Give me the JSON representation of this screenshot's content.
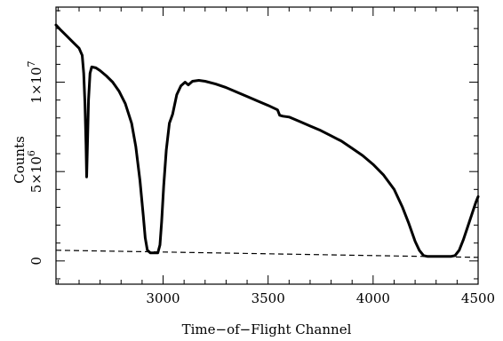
{
  "chart_data": {
    "type": "line",
    "title": "",
    "xlabel": "Time−of−Flight Channel",
    "ylabel": "Counts",
    "xlim": [
      2490,
      4500
    ],
    "ylim": [
      -1300000,
      14200000
    ],
    "grid": false,
    "legend": "none",
    "x_major_ticks": [
      3000,
      3500,
      4000,
      4500
    ],
    "x_major_labels": [
      "3000",
      "3500",
      "4000",
      "4500"
    ],
    "x_minor_step": 100,
    "y_major_ticks": [
      0,
      5000000,
      10000000
    ],
    "y_major_labels": [
      {
        "base": "0",
        "exp": ""
      },
      {
        "base": "5×10",
        "exp": "6"
      },
      {
        "base": "1×10",
        "exp": "7"
      }
    ],
    "y_minor_step": 1000000,
    "series": [
      {
        "style": "solid-thick",
        "points": [
          [
            2490,
            13200000
          ],
          [
            2510,
            12950000
          ],
          [
            2540,
            12600000
          ],
          [
            2570,
            12250000
          ],
          [
            2600,
            11900000
          ],
          [
            2615,
            11500000
          ],
          [
            2622,
            10500000
          ],
          [
            2628,
            8800000
          ],
          [
            2633,
            6500000
          ],
          [
            2636,
            4700000
          ],
          [
            2640,
            6500000
          ],
          [
            2645,
            9000000
          ],
          [
            2652,
            10500000
          ],
          [
            2660,
            10850000
          ],
          [
            2680,
            10800000
          ],
          [
            2700,
            10650000
          ],
          [
            2730,
            10350000
          ],
          [
            2760,
            10000000
          ],
          [
            2790,
            9500000
          ],
          [
            2820,
            8800000
          ],
          [
            2850,
            7700000
          ],
          [
            2870,
            6400000
          ],
          [
            2890,
            4500000
          ],
          [
            2905,
            2600000
          ],
          [
            2915,
            1300000
          ],
          [
            2925,
            600000
          ],
          [
            2940,
            450000
          ],
          [
            2960,
            450000
          ],
          [
            2975,
            450000
          ],
          [
            2985,
            900000
          ],
          [
            2993,
            2200000
          ],
          [
            3003,
            4200000
          ],
          [
            3015,
            6200000
          ],
          [
            3030,
            7700000
          ],
          [
            3045,
            8200000
          ],
          [
            3065,
            9300000
          ],
          [
            3085,
            9800000
          ],
          [
            3105,
            10000000
          ],
          [
            3120,
            9850000
          ],
          [
            3140,
            10050000
          ],
          [
            3170,
            10100000
          ],
          [
            3200,
            10050000
          ],
          [
            3250,
            9900000
          ],
          [
            3300,
            9700000
          ],
          [
            3350,
            9450000
          ],
          [
            3400,
            9200000
          ],
          [
            3450,
            8950000
          ],
          [
            3500,
            8700000
          ],
          [
            3545,
            8450000
          ],
          [
            3555,
            8150000
          ],
          [
            3570,
            8100000
          ],
          [
            3600,
            8050000
          ],
          [
            3650,
            7800000
          ],
          [
            3700,
            7550000
          ],
          [
            3750,
            7300000
          ],
          [
            3800,
            7000000
          ],
          [
            3850,
            6700000
          ],
          [
            3900,
            6300000
          ],
          [
            3950,
            5900000
          ],
          [
            4000,
            5400000
          ],
          [
            4050,
            4800000
          ],
          [
            4100,
            4000000
          ],
          [
            4140,
            3000000
          ],
          [
            4170,
            2100000
          ],
          [
            4200,
            1100000
          ],
          [
            4220,
            600000
          ],
          [
            4240,
            300000
          ],
          [
            4260,
            250000
          ],
          [
            4300,
            250000
          ],
          [
            4340,
            250000
          ],
          [
            4370,
            250000
          ],
          [
            4390,
            300000
          ],
          [
            4410,
            600000
          ],
          [
            4430,
            1200000
          ],
          [
            4450,
            1900000
          ],
          [
            4470,
            2600000
          ],
          [
            4490,
            3300000
          ],
          [
            4500,
            3600000
          ]
        ]
      },
      {
        "style": "dashed",
        "points": [
          [
            2490,
            600000
          ],
          [
            3000,
            500000
          ],
          [
            3500,
            400000
          ],
          [
            4000,
            300000
          ],
          [
            4500,
            200000
          ]
        ]
      }
    ]
  }
}
